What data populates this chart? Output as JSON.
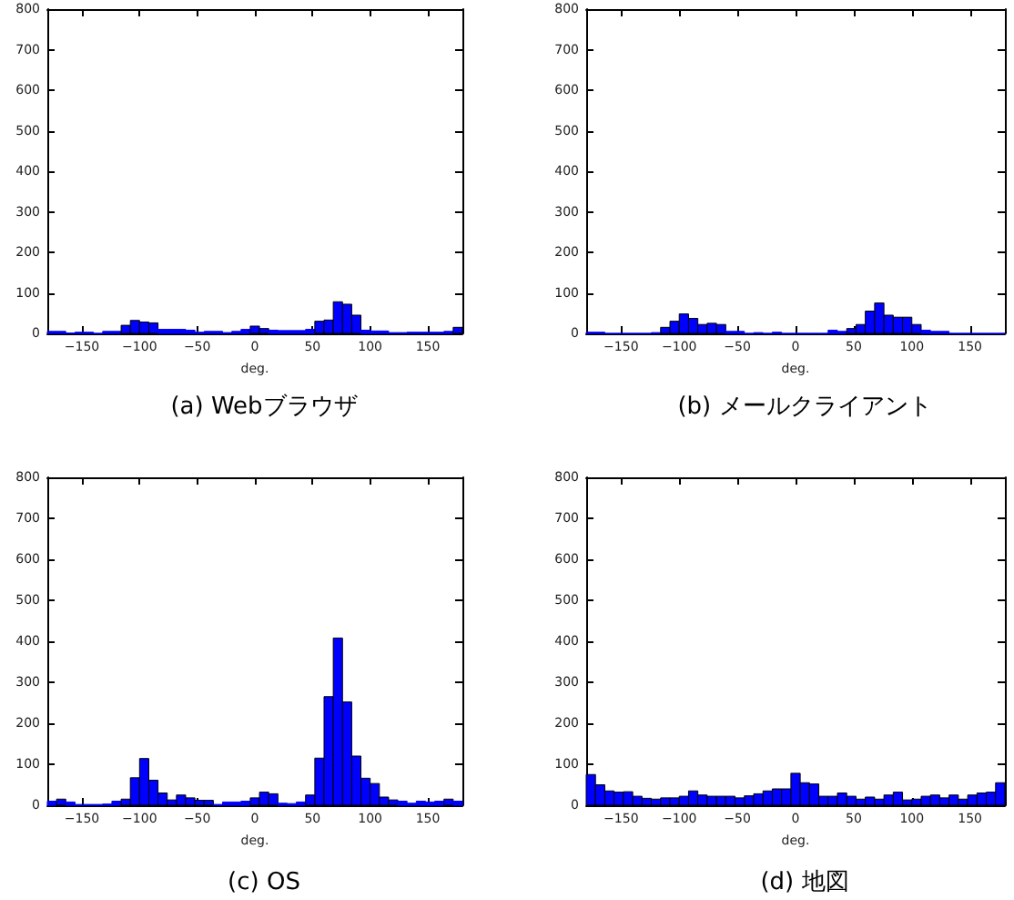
{
  "chart_data": [
    {
      "type": "histogram",
      "title": "(a) Webブラウザ",
      "xlabel": "deg.",
      "color": "#0000ff",
      "xlim": [
        -180,
        180
      ],
      "ylim": [
        0,
        800
      ],
      "xticks": [
        {
          "value": -150,
          "label": "−150"
        },
        {
          "value": -100,
          "label": "−100"
        },
        {
          "value": -50,
          "label": "−50"
        },
        0,
        50,
        100,
        150
      ],
      "yticks": [
        0,
        100,
        200,
        300,
        400,
        500,
        600,
        700,
        800
      ],
      "bins": [
        -180,
        -172,
        -164,
        -156,
        -148,
        -140,
        -132,
        -124,
        -116,
        -108,
        -100,
        -92,
        -84,
        -76,
        -68,
        -60,
        -52,
        -44,
        -36,
        -28,
        -20,
        -12,
        -4,
        4,
        12,
        20,
        28,
        36,
        44,
        52,
        60,
        68,
        76,
        84,
        92,
        100,
        108,
        116,
        124,
        132,
        140,
        148,
        156,
        164,
        172,
        180
      ],
      "values": [
        5,
        5,
        1,
        3,
        3,
        0,
        5,
        5,
        20,
        32,
        28,
        26,
        10,
        10,
        10,
        8,
        3,
        5,
        5,
        2,
        5,
        10,
        18,
        12,
        8,
        7,
        7,
        7,
        10,
        30,
        33,
        78,
        72,
        45,
        8,
        6,
        6,
        2,
        2,
        3,
        3,
        3,
        3,
        5,
        15
      ]
    },
    {
      "type": "histogram",
      "title": "(b) メールクライアント",
      "xlabel": "deg.",
      "color": "#0000ff",
      "xlim": [
        -180,
        180
      ],
      "ylim": [
        0,
        800
      ],
      "xticks": [
        {
          "value": -150,
          "label": "−150"
        },
        {
          "value": -100,
          "label": "−100"
        },
        {
          "value": -50,
          "label": "−50"
        },
        0,
        50,
        100,
        150
      ],
      "yticks": [
        0,
        100,
        200,
        300,
        400,
        500,
        600,
        700,
        800
      ],
      "bins": [
        -180,
        -172,
        -164,
        -156,
        -148,
        -140,
        -132,
        -124,
        -116,
        -108,
        -100,
        -92,
        -84,
        -76,
        -68,
        -60,
        -52,
        -44,
        -36,
        -28,
        -20,
        -12,
        -4,
        4,
        12,
        20,
        28,
        36,
        44,
        52,
        60,
        68,
        76,
        84,
        92,
        100,
        108,
        116,
        124,
        132,
        140,
        148,
        156,
        164,
        172,
        180
      ],
      "values": [
        3,
        3,
        0,
        0,
        0,
        0,
        0,
        2,
        15,
        30,
        48,
        37,
        22,
        25,
        22,
        5,
        5,
        0,
        2,
        0,
        3,
        0,
        0,
        0,
        0,
        0,
        8,
        5,
        12,
        22,
        55,
        75,
        45,
        40,
        40,
        22,
        8,
        5,
        5,
        0,
        0,
        0,
        0,
        0,
        0
      ]
    },
    {
      "type": "histogram",
      "title": "(c) OS",
      "xlabel": "deg.",
      "color": "#0000ff",
      "xlim": [
        -180,
        180
      ],
      "ylim": [
        0,
        800
      ],
      "xticks": [
        {
          "value": -150,
          "label": "−150"
        },
        {
          "value": -100,
          "label": "−100"
        },
        {
          "value": -50,
          "label": "−50"
        },
        0,
        50,
        100,
        150
      ],
      "yticks": [
        0,
        100,
        200,
        300,
        400,
        500,
        600,
        700,
        800
      ],
      "bins": [
        -180,
        -172,
        -164,
        -156,
        -148,
        -140,
        -132,
        -124,
        -116,
        -108,
        -100,
        -92,
        -84,
        -76,
        -68,
        -60,
        -52,
        -44,
        -36,
        -28,
        -20,
        -12,
        -4,
        4,
        12,
        20,
        28,
        36,
        44,
        52,
        60,
        68,
        76,
        84,
        92,
        100,
        108,
        116,
        124,
        132,
        140,
        148,
        156,
        164,
        172,
        180
      ],
      "values": [
        10,
        15,
        8,
        2,
        2,
        2,
        3,
        10,
        15,
        67,
        114,
        61,
        30,
        13,
        25,
        18,
        12,
        12,
        2,
        8,
        8,
        10,
        18,
        32,
        28,
        5,
        4,
        8,
        25,
        115,
        265,
        408,
        252,
        120,
        66,
        53,
        20,
        13,
        10,
        5,
        10,
        8,
        10,
        15,
        10
      ]
    },
    {
      "type": "histogram",
      "title": "(d) 地図",
      "xlabel": "deg.",
      "color": "#0000ff",
      "xlim": [
        -180,
        180
      ],
      "ylim": [
        0,
        800
      ],
      "xticks": [
        {
          "value": -150,
          "label": "−150"
        },
        {
          "value": -100,
          "label": "−100"
        },
        {
          "value": -50,
          "label": "−50"
        },
        0,
        50,
        100,
        150
      ],
      "yticks": [
        0,
        100,
        200,
        300,
        400,
        500,
        600,
        700,
        800
      ],
      "bins": [
        -180,
        -172,
        -164,
        -156,
        -148,
        -140,
        -132,
        -124,
        -116,
        -108,
        -100,
        -92,
        -84,
        -76,
        -68,
        -60,
        -52,
        -44,
        -36,
        -28,
        -20,
        -12,
        -4,
        4,
        12,
        20,
        28,
        36,
        44,
        52,
        60,
        68,
        76,
        84,
        92,
        100,
        108,
        116,
        124,
        132,
        140,
        148,
        156,
        164,
        172,
        180
      ],
      "values": [
        75,
        50,
        35,
        32,
        33,
        22,
        17,
        15,
        18,
        18,
        22,
        35,
        25,
        22,
        22,
        22,
        18,
        23,
        28,
        35,
        40,
        40,
        78,
        55,
        52,
        22,
        22,
        30,
        22,
        15,
        20,
        15,
        25,
        32,
        13,
        15,
        22,
        25,
        18,
        25,
        15,
        25,
        30,
        32,
        55
      ]
    }
  ]
}
